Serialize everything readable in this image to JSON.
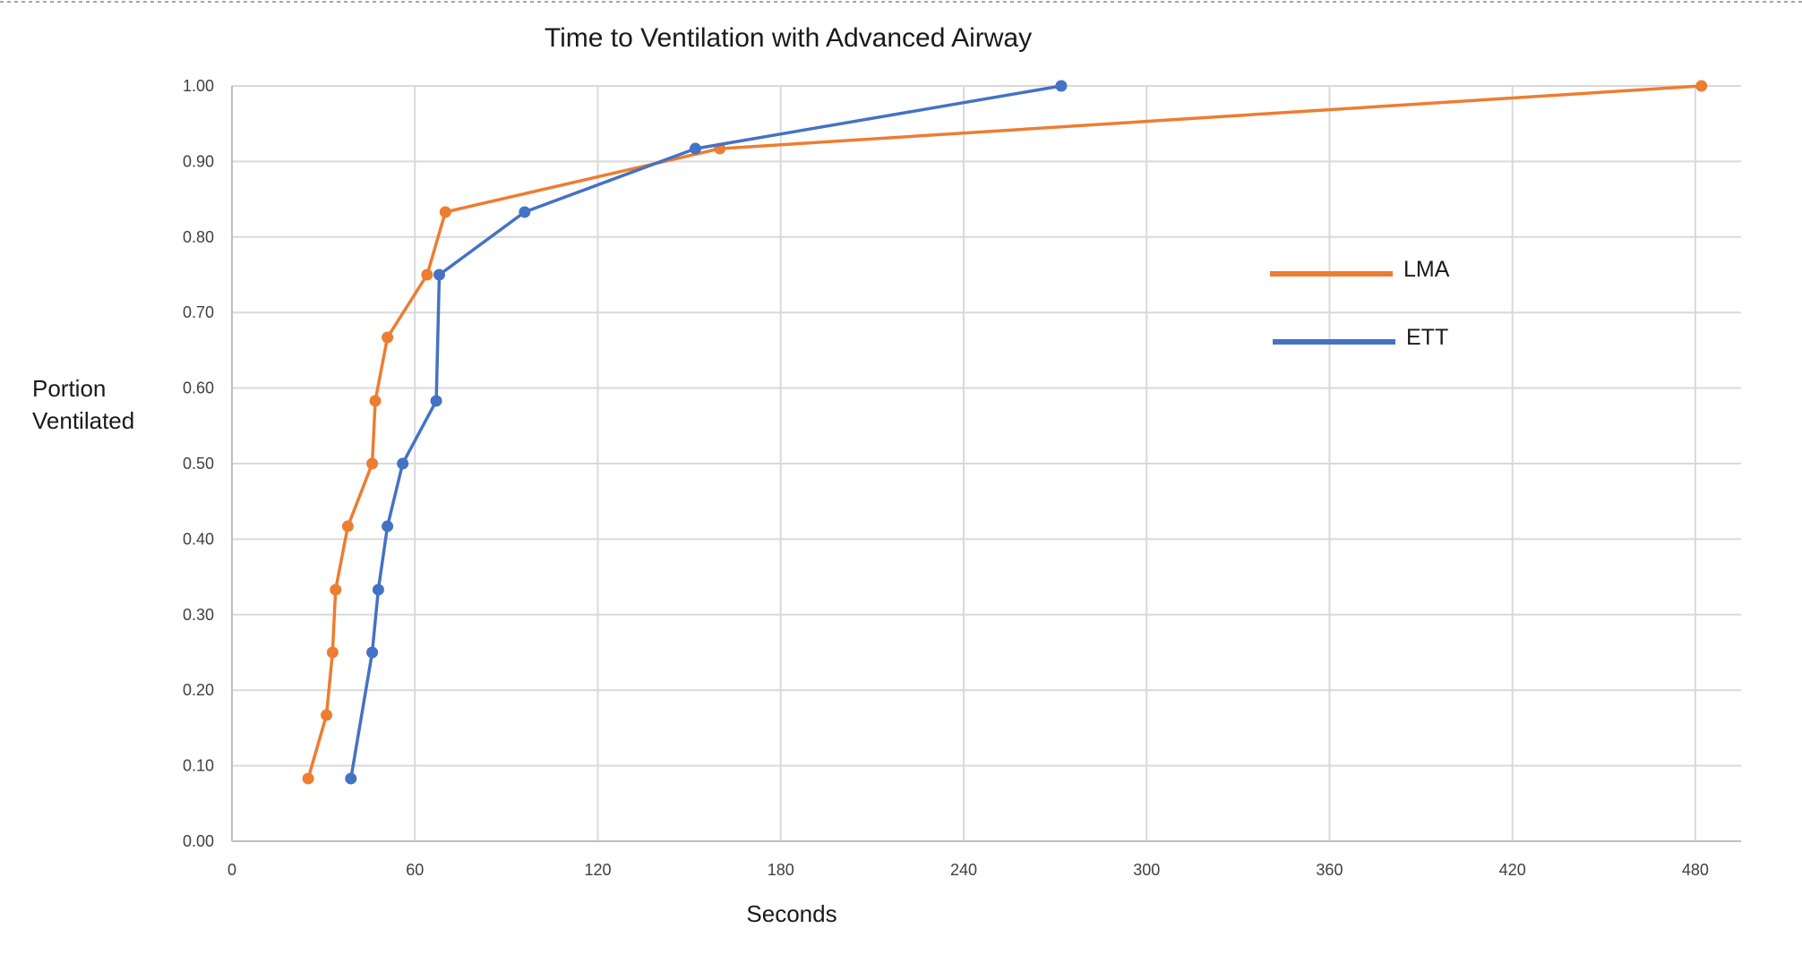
{
  "chart_data": {
    "type": "line",
    "title": "Time to Ventilation with Advanced Airway",
    "xlabel": "Seconds",
    "ylabel": "Portion Ventilated",
    "xlim": [
      0,
      495
    ],
    "ylim": [
      0,
      1.0
    ],
    "x_ticks": [
      0,
      60,
      120,
      180,
      240,
      300,
      360,
      420,
      480
    ],
    "y_ticks": [
      0.0,
      0.1,
      0.2,
      0.3,
      0.4,
      0.5,
      0.6,
      0.7,
      0.8,
      0.9,
      1.0
    ],
    "y_tick_labels": [
      "0.00",
      "0.10",
      "0.20",
      "0.30",
      "0.40",
      "0.50",
      "0.60",
      "0.70",
      "0.80",
      "0.90",
      "1.00"
    ],
    "grid": true,
    "legend_position": "right",
    "series": [
      {
        "name": "LMA",
        "color": "#ED7D31",
        "x": [
          25,
          31,
          33,
          34,
          38,
          46,
          47,
          51,
          64,
          70,
          160,
          482
        ],
        "y": [
          0.083,
          0.167,
          0.25,
          0.333,
          0.417,
          0.5,
          0.583,
          0.667,
          0.75,
          0.833,
          0.917,
          1.0
        ]
      },
      {
        "name": "ETT",
        "color": "#4472C4",
        "x": [
          39,
          46,
          48,
          51,
          56,
          67,
          68,
          96,
          152,
          272
        ],
        "y": [
          0.083,
          0.25,
          0.333,
          0.417,
          0.5,
          0.583,
          0.75,
          0.833,
          0.917,
          1.0
        ]
      }
    ]
  }
}
